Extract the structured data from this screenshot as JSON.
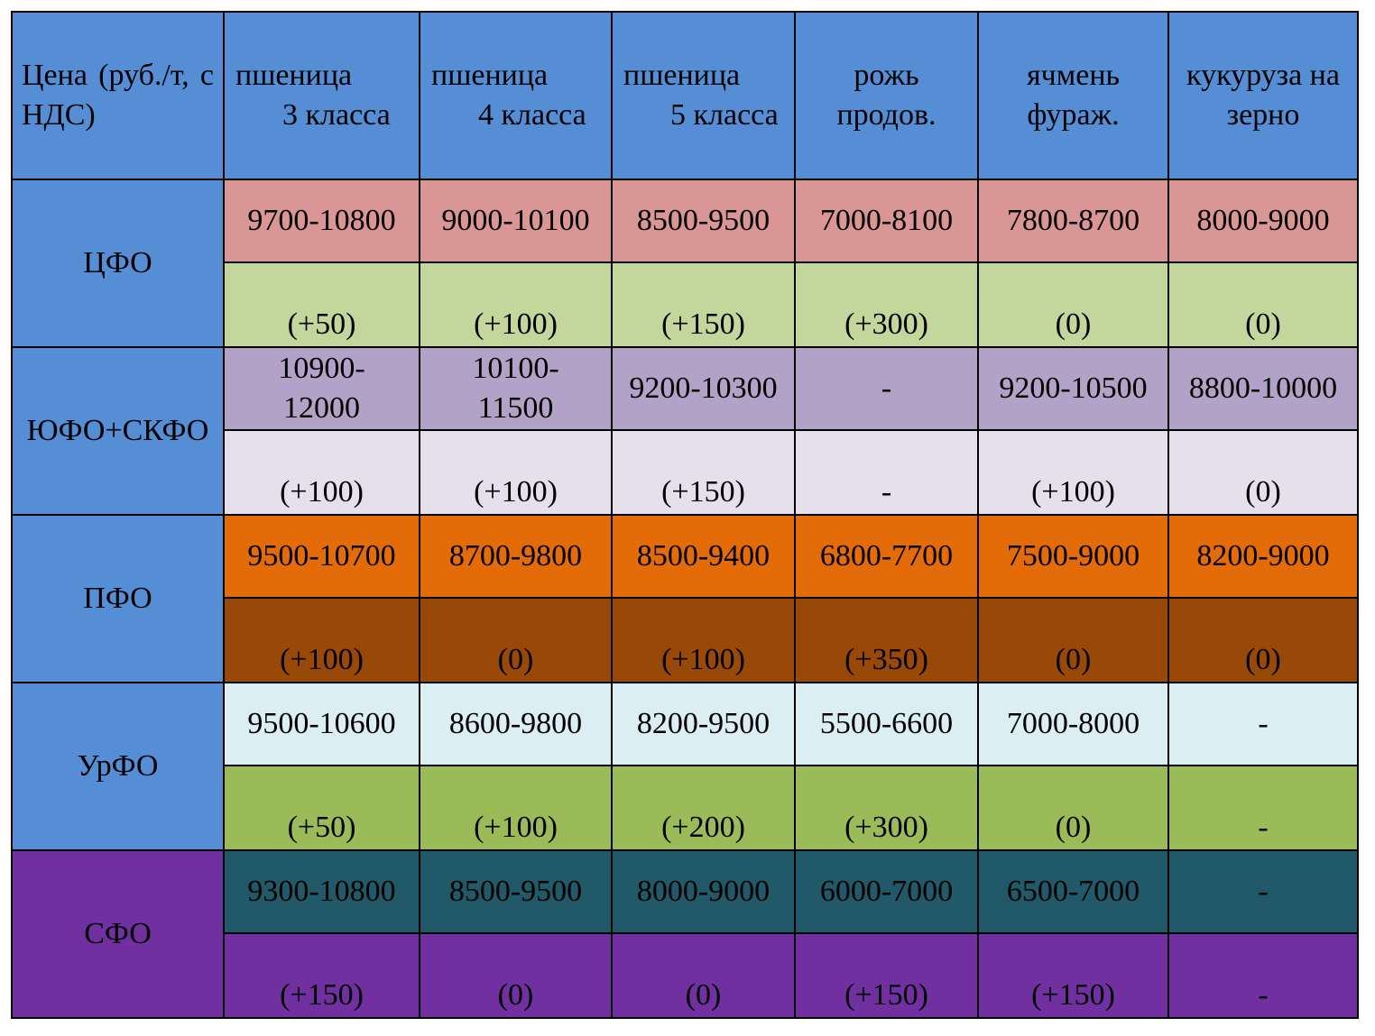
{
  "header": {
    "first_col": "Цена (руб./т, с НДС)",
    "columns": [
      {
        "line1": "пшеница",
        "line2": "3 класса"
      },
      {
        "line1": "пшеница",
        "line2": "4 класса"
      },
      {
        "line1": "пшеница",
        "line2": "5 класса"
      },
      {
        "line1": "рожь",
        "line2": "продов."
      },
      {
        "line1": "ячмень",
        "line2": "фураж."
      },
      {
        "line1": "кукуруза на",
        "line2": "зерно"
      }
    ]
  },
  "regions": [
    {
      "name": "ЦФО",
      "prices": [
        "9700-10800",
        "9000-10100",
        "8500-9500",
        "7000-8100",
        "7800-8700",
        "8000-9000"
      ],
      "changes": [
        "(+50)",
        "(+100)",
        "(+150)",
        "(+300)",
        "(0)",
        "(0)"
      ],
      "colors": {
        "price_bg": "#d99694",
        "change_bg": "#c3d69b"
      }
    },
    {
      "name": "ЮФО+СКФО",
      "prices": [
        "10900-12000",
        "10100-11500",
        "9200-10300",
        "-",
        "9200-10500",
        "8800-10000"
      ],
      "changes": [
        "(+100)",
        "(+100)",
        "(+150)",
        "-",
        "(+100)",
        "(0)"
      ],
      "colors": {
        "price_bg": "#b2a2c7",
        "change_bg": "#e5e0ec"
      }
    },
    {
      "name": "ПФО",
      "prices": [
        "9500-10700",
        "8700-9800",
        "8500-9400",
        "6800-7700",
        "7500-9000",
        "8200-9000"
      ],
      "changes": [
        "(+100)",
        "(0)",
        "(+100)",
        "(+350)",
        "(0)",
        "(0)"
      ],
      "colors": {
        "price_bg": "#e36c09",
        "change_bg": "#984807"
      }
    },
    {
      "name": "УрФО",
      "prices": [
        "9500-10600",
        "8600-9800",
        "8200-9500",
        "5500-6600",
        "7000-8000",
        "-"
      ],
      "changes": [
        "(+50)",
        "(+100)",
        "(+200)",
        "(+300)",
        "(0)",
        "-"
      ],
      "colors": {
        "price_bg": "#dbeef4",
        "change_bg": "#9bbb59"
      }
    },
    {
      "name": "СФО",
      "prices": [
        "9300-10800",
        "8500-9500",
        "8000-9000",
        "6000-7000",
        "6500-7000",
        "-"
      ],
      "changes": [
        "(+150)",
        "(0)",
        "(0)",
        "(+150)",
        "(+150)",
        "-"
      ],
      "colors": {
        "price_bg": "#215968",
        "change_bg": "#7030a0"
      }
    }
  ],
  "colors": {
    "header_bg": "#558ed5",
    "region_bg": "#558ed5",
    "sfo_region_bg": "#7030a0"
  }
}
